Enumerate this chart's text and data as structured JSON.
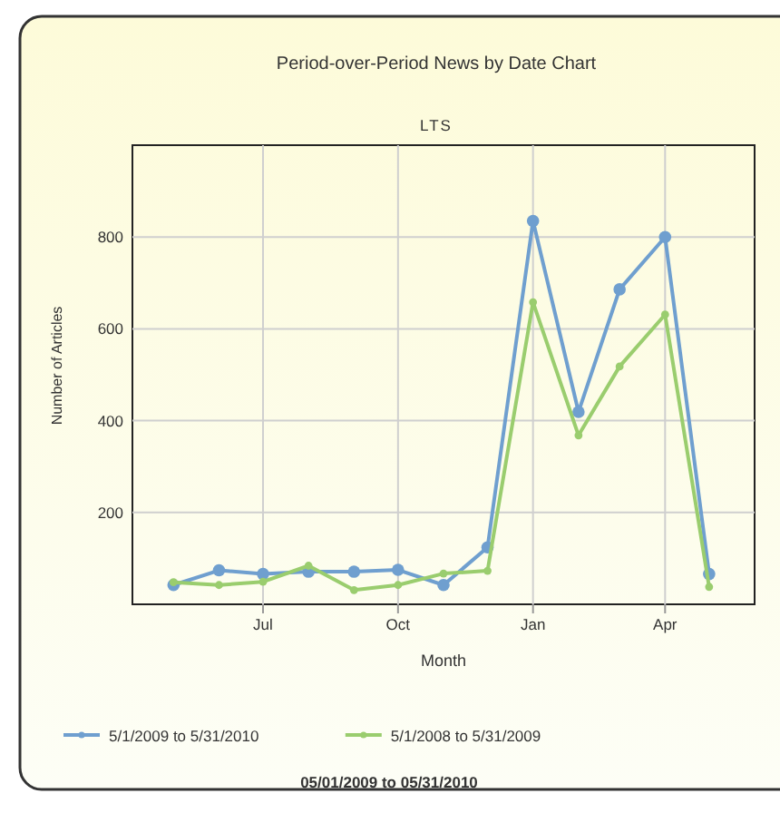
{
  "chart_data": {
    "type": "line",
    "title": "Period-over-Period News by Date Chart",
    "subtitle": "LTS",
    "xlabel": "Month",
    "ylabel": "Number of Articles",
    "x": [
      "2009-05-01",
      "2009-06-01",
      "2009-07-01",
      "2009-08-01",
      "2009-09-01",
      "2009-10-01",
      "2009-11-01",
      "2009-12-01",
      "2010-01-01",
      "2010-02-01",
      "2010-03-01",
      "2010-04-01",
      "2010-05-01"
    ],
    "series": [
      {
        "name": "5/1/2009 to 5/31/2010",
        "color": "#6f9fcf",
        "values": [
          42,
          74,
          66,
          71,
          71,
          75,
          42,
          124,
          835,
          419,
          686,
          800,
          66
        ]
      },
      {
        "name": "5/1/2008 to 5/31/2009",
        "color": "#9acd6e",
        "values": [
          48,
          42,
          49,
          84,
          31,
          42,
          67,
          73,
          658,
          368,
          518,
          631,
          38
        ]
      }
    ],
    "xlim": [
      "2009-04-03",
      "2010-06-01"
    ],
    "xticks": [
      {
        "value": "2009-07-01",
        "label": "Jul"
      },
      {
        "value": "2009-10-01",
        "label": "Oct"
      },
      {
        "value": "2010-01-01",
        "label": "Jan"
      },
      {
        "value": "2010-04-01",
        "label": "Apr"
      }
    ],
    "ylim": [
      0,
      1000
    ],
    "yticks": [
      200,
      400,
      600,
      800
    ],
    "grid": true,
    "legend": "bottom",
    "marker": "circle",
    "line_style": "solid",
    "annotations": [
      "05/01/2009 to 05/31/2010"
    ]
  }
}
